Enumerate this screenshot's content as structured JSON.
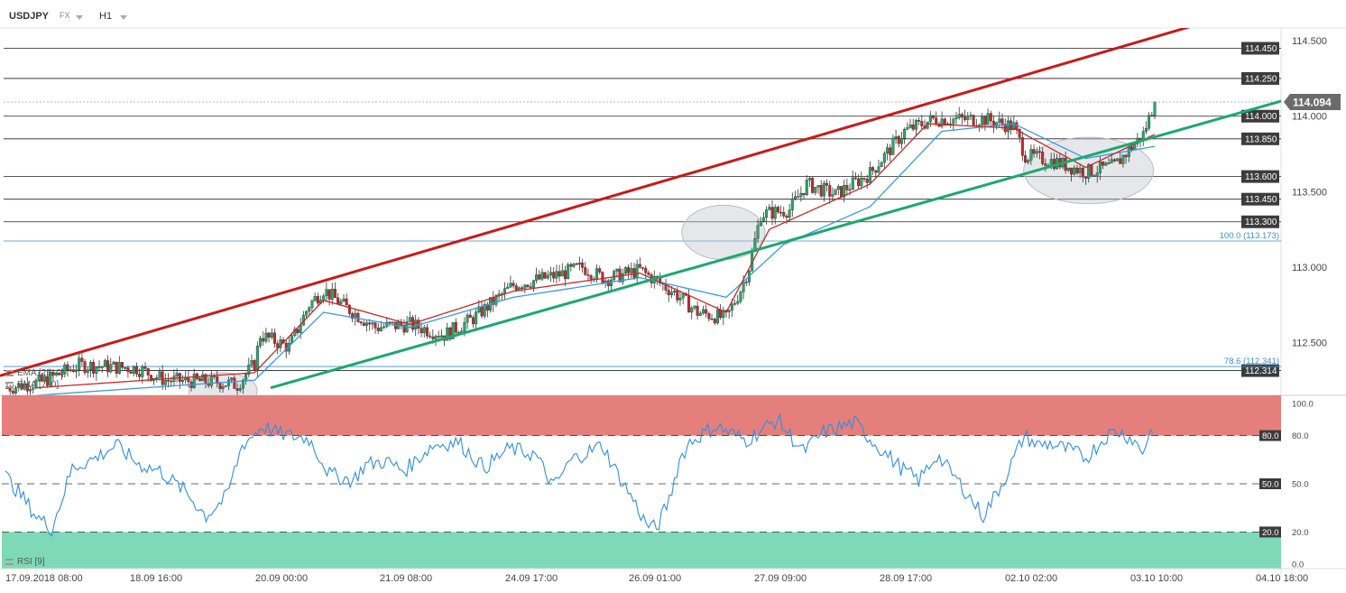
{
  "header": {
    "symbol": "USDJPY",
    "market": "FX",
    "timeframe": "H1"
  },
  "indicators": {
    "ema21": "EMA [21, 0]",
    "ema7": "EMA [7, 0]",
    "rsi": "RSI [9]"
  },
  "chart_data": [
    {
      "type": "candlestick",
      "price_range": [
        112.15,
        114.77
      ],
      "current_price": "114.094",
      "price_ticks": [
        "114.500",
        "114.000",
        "113.500",
        "113.000",
        "112.500"
      ],
      "price_tick_values": [
        114.5,
        114.0,
        113.5,
        113.0,
        112.5
      ],
      "horizontal_levels": [
        {
          "label": "114.450",
          "value": 114.45
        },
        {
          "label": "114.250",
          "value": 114.25
        },
        {
          "label": "114.000",
          "value": 114.0
        },
        {
          "label": "113.850",
          "value": 113.85
        },
        {
          "label": "113.600",
          "value": 113.6
        },
        {
          "label": "113.450",
          "value": 113.45
        },
        {
          "label": "113.300",
          "value": 113.3
        },
        {
          "label": "112.314",
          "value": 112.314
        }
      ],
      "fib_levels": [
        {
          "label": "100.0 (113.173)",
          "value": 113.173
        },
        {
          "label": "78.6 (112.341)",
          "value": 112.341
        }
      ],
      "time_labels": [
        "17.09.2018 08:00",
        "18.09 16:00",
        "20.09 00:00",
        "21.09 08:00",
        "24.09 17:00",
        "26.09 01:00",
        "27.09 09:00",
        "28.09 17:00",
        "02.10 02:00",
        "03.10 10:00",
        "04.10 18:00"
      ],
      "anchors": [
        [
          0,
          112.2
        ],
        [
          12,
          112.24
        ],
        [
          25,
          112.35
        ],
        [
          45,
          112.33
        ],
        [
          55,
          112.25
        ],
        [
          72,
          112.24
        ],
        [
          80,
          112.22
        ],
        [
          86,
          112.36
        ],
        [
          88,
          112.55
        ],
        [
          98,
          112.47
        ],
        [
          105,
          112.75
        ],
        [
          110,
          112.85
        ],
        [
          118,
          112.73
        ],
        [
          128,
          112.6
        ],
        [
          140,
          112.62
        ],
        [
          152,
          112.55
        ],
        [
          162,
          112.66
        ],
        [
          176,
          112.88
        ],
        [
          192,
          112.95
        ],
        [
          200,
          113.0
        ],
        [
          208,
          112.92
        ],
        [
          220,
          112.98
        ],
        [
          232,
          112.83
        ],
        [
          240,
          112.7
        ],
        [
          250,
          112.66
        ],
        [
          255,
          112.85
        ],
        [
          258,
          113.0
        ],
        [
          262,
          113.35
        ],
        [
          272,
          113.38
        ],
        [
          278,
          113.55
        ],
        [
          288,
          113.48
        ],
        [
          300,
          113.62
        ],
        [
          312,
          113.9
        ],
        [
          322,
          113.98
        ],
        [
          340,
          113.98
        ],
        [
          350,
          113.93
        ],
        [
          354,
          113.74
        ],
        [
          364,
          113.7
        ],
        [
          375,
          113.63
        ],
        [
          385,
          113.67
        ],
        [
          395,
          113.88
        ],
        [
          399,
          114.094
        ]
      ],
      "ema7": [
        [
          10,
          112.2
        ],
        [
          86,
          112.3
        ],
        [
          110,
          112.78
        ],
        [
          140,
          112.62
        ],
        [
          176,
          112.84
        ],
        [
          220,
          112.96
        ],
        [
          250,
          112.7
        ],
        [
          265,
          113.25
        ],
        [
          300,
          113.55
        ],
        [
          320,
          113.95
        ],
        [
          350,
          113.92
        ],
        [
          375,
          113.66
        ],
        [
          399,
          113.88
        ]
      ],
      "ema21": [
        [
          10,
          112.15
        ],
        [
          86,
          112.25
        ],
        [
          110,
          112.7
        ],
        [
          140,
          112.6
        ],
        [
          176,
          112.8
        ],
        [
          220,
          112.93
        ],
        [
          250,
          112.8
        ],
        [
          270,
          113.15
        ],
        [
          300,
          113.4
        ],
        [
          325,
          113.9
        ],
        [
          350,
          113.95
        ],
        [
          375,
          113.72
        ],
        [
          399,
          113.8
        ]
      ],
      "trendlines": [
        {
          "color": "#c81a1a",
          "from": [
            0,
            112.28
          ],
          "to": [
            1420,
            114.77
          ]
        },
        {
          "color": "#1ca86f",
          "from": [
            300,
            112.2
          ],
          "to": [
            1432,
            114.12
          ]
        }
      ]
    },
    {
      "type": "line",
      "name": "RSI",
      "ylim": [
        0,
        100
      ],
      "y_ticks": [
        "100.0",
        "80.0",
        "50.0",
        "20.0",
        "0.0"
      ],
      "y_tick_values": [
        100,
        80,
        50,
        20,
        0
      ],
      "levels": [
        {
          "label": "80.0",
          "value": 80
        },
        {
          "label": "50.0",
          "value": 50
        },
        {
          "label": "20.0",
          "value": 20
        }
      ],
      "anchors": [
        [
          0,
          55
        ],
        [
          5,
          45
        ],
        [
          12,
          30
        ],
        [
          18,
          22
        ],
        [
          26,
          60
        ],
        [
          35,
          66
        ],
        [
          43,
          74
        ],
        [
          52,
          62
        ],
        [
          60,
          58
        ],
        [
          70,
          45
        ],
        [
          78,
          30
        ],
        [
          86,
          42
        ],
        [
          92,
          74
        ],
        [
          100,
          86
        ],
        [
          105,
          82
        ],
        [
          110,
          80
        ],
        [
          118,
          78
        ],
        [
          126,
          56
        ],
        [
          135,
          52
        ],
        [
          140,
          62
        ],
        [
          148,
          64
        ],
        [
          155,
          58
        ],
        [
          166,
          74
        ],
        [
          176,
          76
        ],
        [
          186,
          60
        ],
        [
          196,
          72
        ],
        [
          206,
          68
        ],
        [
          213,
          48
        ],
        [
          220,
          65
        ],
        [
          232,
          74
        ],
        [
          238,
          56
        ],
        [
          244,
          40
        ],
        [
          249,
          25
        ],
        [
          253,
          22
        ],
        [
          258,
          40
        ],
        [
          262,
          65
        ],
        [
          266,
          76
        ],
        [
          276,
          86
        ],
        [
          288,
          77
        ],
        [
          300,
          90
        ],
        [
          310,
          70
        ],
        [
          318,
          82
        ],
        [
          330,
          88
        ],
        [
          338,
          75
        ],
        [
          348,
          60
        ],
        [
          355,
          52
        ],
        [
          362,
          68
        ],
        [
          372,
          48
        ],
        [
          380,
          30
        ],
        [
          388,
          52
        ],
        [
          396,
          80
        ],
        [
          401,
          74
        ],
        [
          406,
          75
        ],
        [
          415,
          70
        ],
        [
          420,
          66
        ],
        [
          428,
          80
        ],
        [
          432,
          83
        ],
        [
          438,
          78
        ],
        [
          442,
          70
        ],
        [
          446,
          86
        ]
      ]
    }
  ]
}
